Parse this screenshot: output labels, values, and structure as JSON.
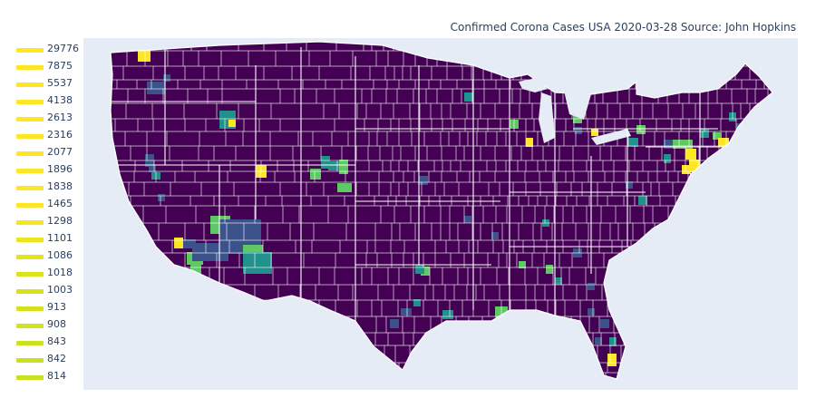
{
  "title": "Confirmed Corona Cases USA 2020-03-28 Source: John Hopkins",
  "colors": {
    "background": "#e5ecf6",
    "low": "#440154",
    "county_lines": "#ffffff",
    "viridis": [
      "#440154",
      "#3b528b",
      "#21918c",
      "#5ec962",
      "#fde725"
    ]
  },
  "legend": [
    {
      "label": "29776",
      "color": "#fde725"
    },
    {
      "label": "7875",
      "color": "#fde725"
    },
    {
      "label": "5537",
      "color": "#fde725"
    },
    {
      "label": "4138",
      "color": "#fde725"
    },
    {
      "label": "2613",
      "color": "#fde725"
    },
    {
      "label": "2316",
      "color": "#fde725"
    },
    {
      "label": "2077",
      "color": "#fde725"
    },
    {
      "label": "1896",
      "color": "#fde725"
    },
    {
      "label": "1838",
      "color": "#fde725"
    },
    {
      "label": "1465",
      "color": "#fde725"
    },
    {
      "label": "1298",
      "color": "#f6e620"
    },
    {
      "label": "1101",
      "color": "#ece51b"
    },
    {
      "label": "1086",
      "color": "#e5e419"
    },
    {
      "label": "1018",
      "color": "#dde318"
    },
    {
      "label": "1003",
      "color": "#d8e219"
    },
    {
      "label": "913",
      "color": "#d5e21a"
    },
    {
      "label": "908",
      "color": "#d2e21b"
    },
    {
      "label": "843",
      "color": "#cde11d"
    },
    {
      "label": "842",
      "color": "#cae11f"
    },
    {
      "label": "814",
      "color": "#c8e020"
    }
  ]
}
